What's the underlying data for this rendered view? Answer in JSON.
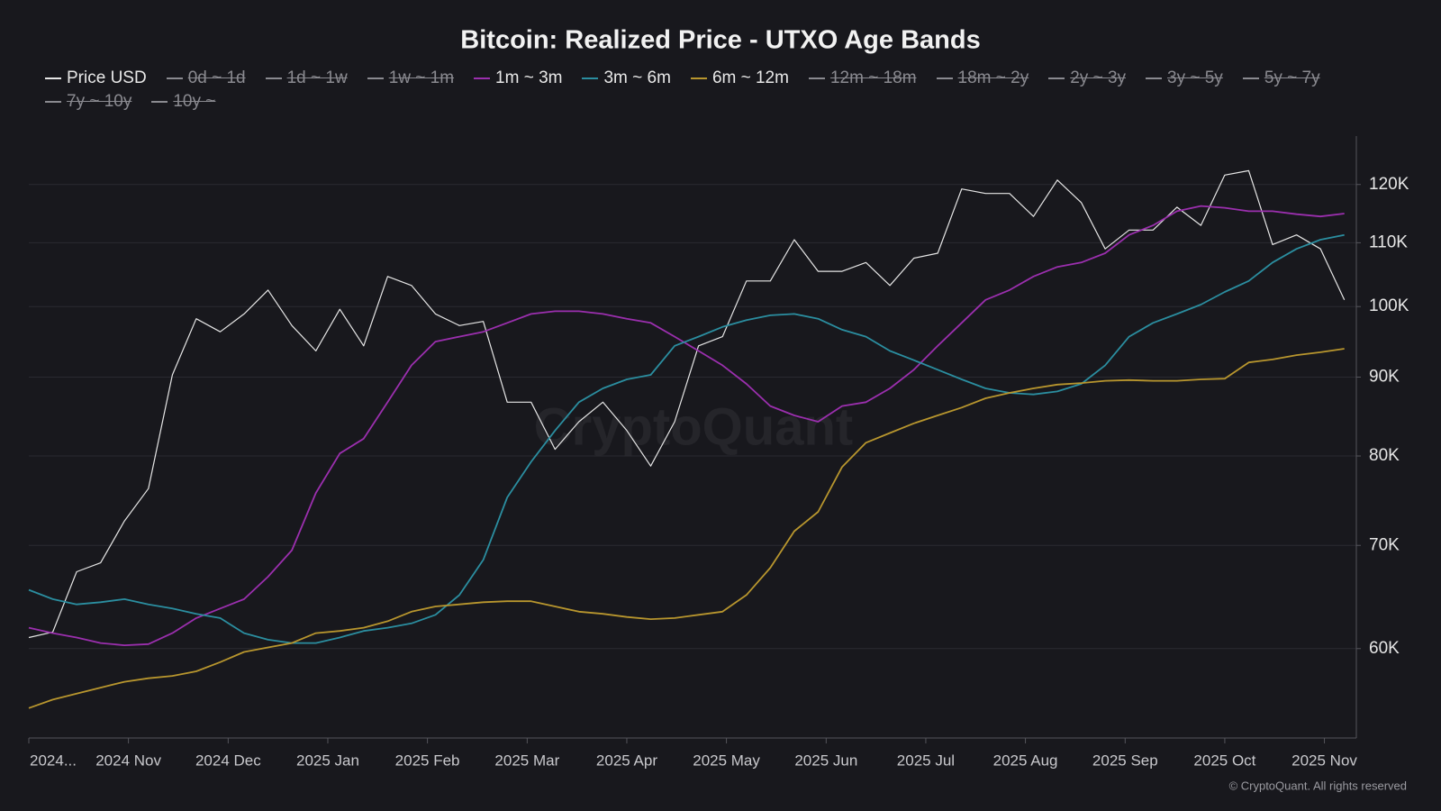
{
  "chart_data": {
    "type": "line",
    "title": "Bitcoin: Realized Price - UTXO Age Bands",
    "watermark": "CryptoQuant",
    "source": "© CryptoQuant. All rights reserved",
    "log_scale_y": true,
    "grid": true,
    "xlim": [
      2024.75,
      2025.86
    ],
    "xticks": [
      {
        "value": 2024.75,
        "label": "2024..."
      },
      {
        "value": 2024.8333,
        "label": "2024 Nov"
      },
      {
        "value": 2024.9167,
        "label": "2024 Dec"
      },
      {
        "value": 2025,
        "label": "2025 Jan"
      },
      {
        "value": 2025.0833,
        "label": "2025 Feb"
      },
      {
        "value": 2025.1667,
        "label": "2025 Mar"
      },
      {
        "value": 2025.25,
        "label": "2025 Apr"
      },
      {
        "value": 2025.3333,
        "label": "2025 May"
      },
      {
        "value": 2025.4167,
        "label": "2025 Jun"
      },
      {
        "value": 2025.5,
        "label": "2025 Jul"
      },
      {
        "value": 2025.5833,
        "label": "2025 Aug"
      },
      {
        "value": 2025.6667,
        "label": "2025 Sep"
      },
      {
        "value": 2025.75,
        "label": "2025 Oct"
      },
      {
        "value": 2025.8333,
        "label": "2025 Nov"
      }
    ],
    "ylim": [
      52500,
      129000
    ],
    "yticks": [
      {
        "value": 60000,
        "label": "60K"
      },
      {
        "value": 70000,
        "label": "70K"
      },
      {
        "value": 80000,
        "label": "80K"
      },
      {
        "value": 90000,
        "label": "90K"
      },
      {
        "value": 100000,
        "label": "100K"
      },
      {
        "value": 110000,
        "label": "110K"
      },
      {
        "value": 120000,
        "label": "120K"
      }
    ],
    "x": [
      2024.75,
      2024.77,
      2024.79,
      2024.81,
      2024.83,
      2024.85,
      2024.87,
      2024.89,
      2024.91,
      2024.93,
      2024.95,
      2024.97,
      2024.99,
      2025.01,
      2025.03,
      2025.05,
      2025.07,
      2025.09,
      2025.11,
      2025.13,
      2025.15,
      2025.17,
      2025.19,
      2025.21,
      2025.23,
      2025.25,
      2025.27,
      2025.29,
      2025.31,
      2025.33,
      2025.35,
      2025.37,
      2025.39,
      2025.41,
      2025.43,
      2025.45,
      2025.47,
      2025.49,
      2025.51,
      2025.53,
      2025.55,
      2025.57,
      2025.59,
      2025.61,
      2025.63,
      2025.65,
      2025.67,
      2025.69,
      2025.71,
      2025.73,
      2025.75,
      2025.77,
      2025.79,
      2025.81,
      2025.83,
      2025.85
    ],
    "series": [
      {
        "name": "Price USD",
        "color": "#e6e6e6",
        "visible": true,
        "values": [
          61000,
          61500,
          67300,
          68200,
          72600,
          76200,
          90300,
          98200,
          96300,
          98900,
          102500,
          97200,
          93600,
          99600,
          94300,
          104600,
          103200,
          98900,
          97200,
          97800,
          86700,
          86700,
          80800,
          84200,
          86700,
          83100,
          78800,
          84200,
          94300,
          95600,
          103900,
          103900,
          110500,
          105400,
          105400,
          106800,
          103200,
          107500,
          108300,
          119200,
          118400,
          118400,
          114400,
          120800,
          116800,
          109000,
          112100,
          112100,
          116000,
          112900,
          121700,
          122500,
          109700,
          111300,
          109000,
          101000
        ]
      },
      {
        "name": "0d ~ 1d",
        "color": "#8a8a90",
        "visible": false
      },
      {
        "name": "1d ~ 1w",
        "color": "#8a8a90",
        "visible": false
      },
      {
        "name": "1w ~ 1m",
        "color": "#8a8a90",
        "visible": false
      },
      {
        "name": "1m ~ 3m",
        "color": "#9b2fae",
        "visible": true,
        "values": [
          61900,
          61400,
          61000,
          60500,
          60300,
          60400,
          61400,
          62800,
          63700,
          64600,
          66800,
          69500,
          75700,
          80300,
          82100,
          86700,
          91600,
          94900,
          95600,
          96300,
          97600,
          98900,
          99300,
          99300,
          98900,
          98200,
          97600,
          95600,
          93600,
          91600,
          89100,
          86200,
          85000,
          84200,
          86200,
          86700,
          88500,
          91000,
          94300,
          97600,
          101000,
          102500,
          104600,
          106100,
          106800,
          108300,
          111300,
          112900,
          115300,
          116200,
          115900,
          115300,
          115300,
          114800,
          114400,
          114900
        ]
      },
      {
        "name": "3m ~ 6m",
        "color": "#2b8ea0",
        "visible": true,
        "values": [
          65500,
          64600,
          64100,
          64300,
          64600,
          64100,
          63700,
          63200,
          62800,
          61400,
          60800,
          60500,
          60500,
          61000,
          61600,
          61900,
          62300,
          63100,
          65000,
          68500,
          75200,
          79300,
          83100,
          86700,
          88500,
          89700,
          90300,
          94300,
          95600,
          97000,
          98000,
          98700,
          98900,
          98200,
          96600,
          95600,
          93600,
          92300,
          91000,
          89700,
          88500,
          87900,
          87700,
          88100,
          89100,
          91600,
          95600,
          97600,
          98900,
          100300,
          102200,
          103900,
          106800,
          109000,
          110500,
          111300
        ]
      },
      {
        "name": "6m ~ 12m",
        "color": "#b8962e",
        "visible": true,
        "values": [
          54900,
          55600,
          56100,
          56600,
          57100,
          57400,
          57600,
          58000,
          58800,
          59700,
          60100,
          60500,
          61400,
          61600,
          61900,
          62500,
          63400,
          63900,
          64100,
          64300,
          64400,
          64400,
          63900,
          63400,
          63200,
          62900,
          62700,
          62800,
          63100,
          63400,
          65000,
          67700,
          71500,
          73600,
          78700,
          81600,
          82800,
          84000,
          85000,
          86000,
          87200,
          87900,
          88500,
          89000,
          89200,
          89500,
          89600,
          89500,
          89500,
          89700,
          89800,
          92000,
          92400,
          93000,
          93400,
          93900
        ]
      },
      {
        "name": "12m ~ 18m",
        "color": "#8a8a90",
        "visible": false
      },
      {
        "name": "18m ~ 2y",
        "color": "#8a8a90",
        "visible": false
      },
      {
        "name": "2y ~ 3y",
        "color": "#8a8a90",
        "visible": false
      },
      {
        "name": "3y ~ 5y",
        "color": "#8a8a90",
        "visible": false
      },
      {
        "name": "5y ~ 7y",
        "color": "#8a8a90",
        "visible": false
      },
      {
        "name": "7y ~ 10y",
        "color": "#8a8a90",
        "visible": false
      },
      {
        "name": "10y ~",
        "color": "#8a8a90",
        "visible": false
      }
    ]
  }
}
